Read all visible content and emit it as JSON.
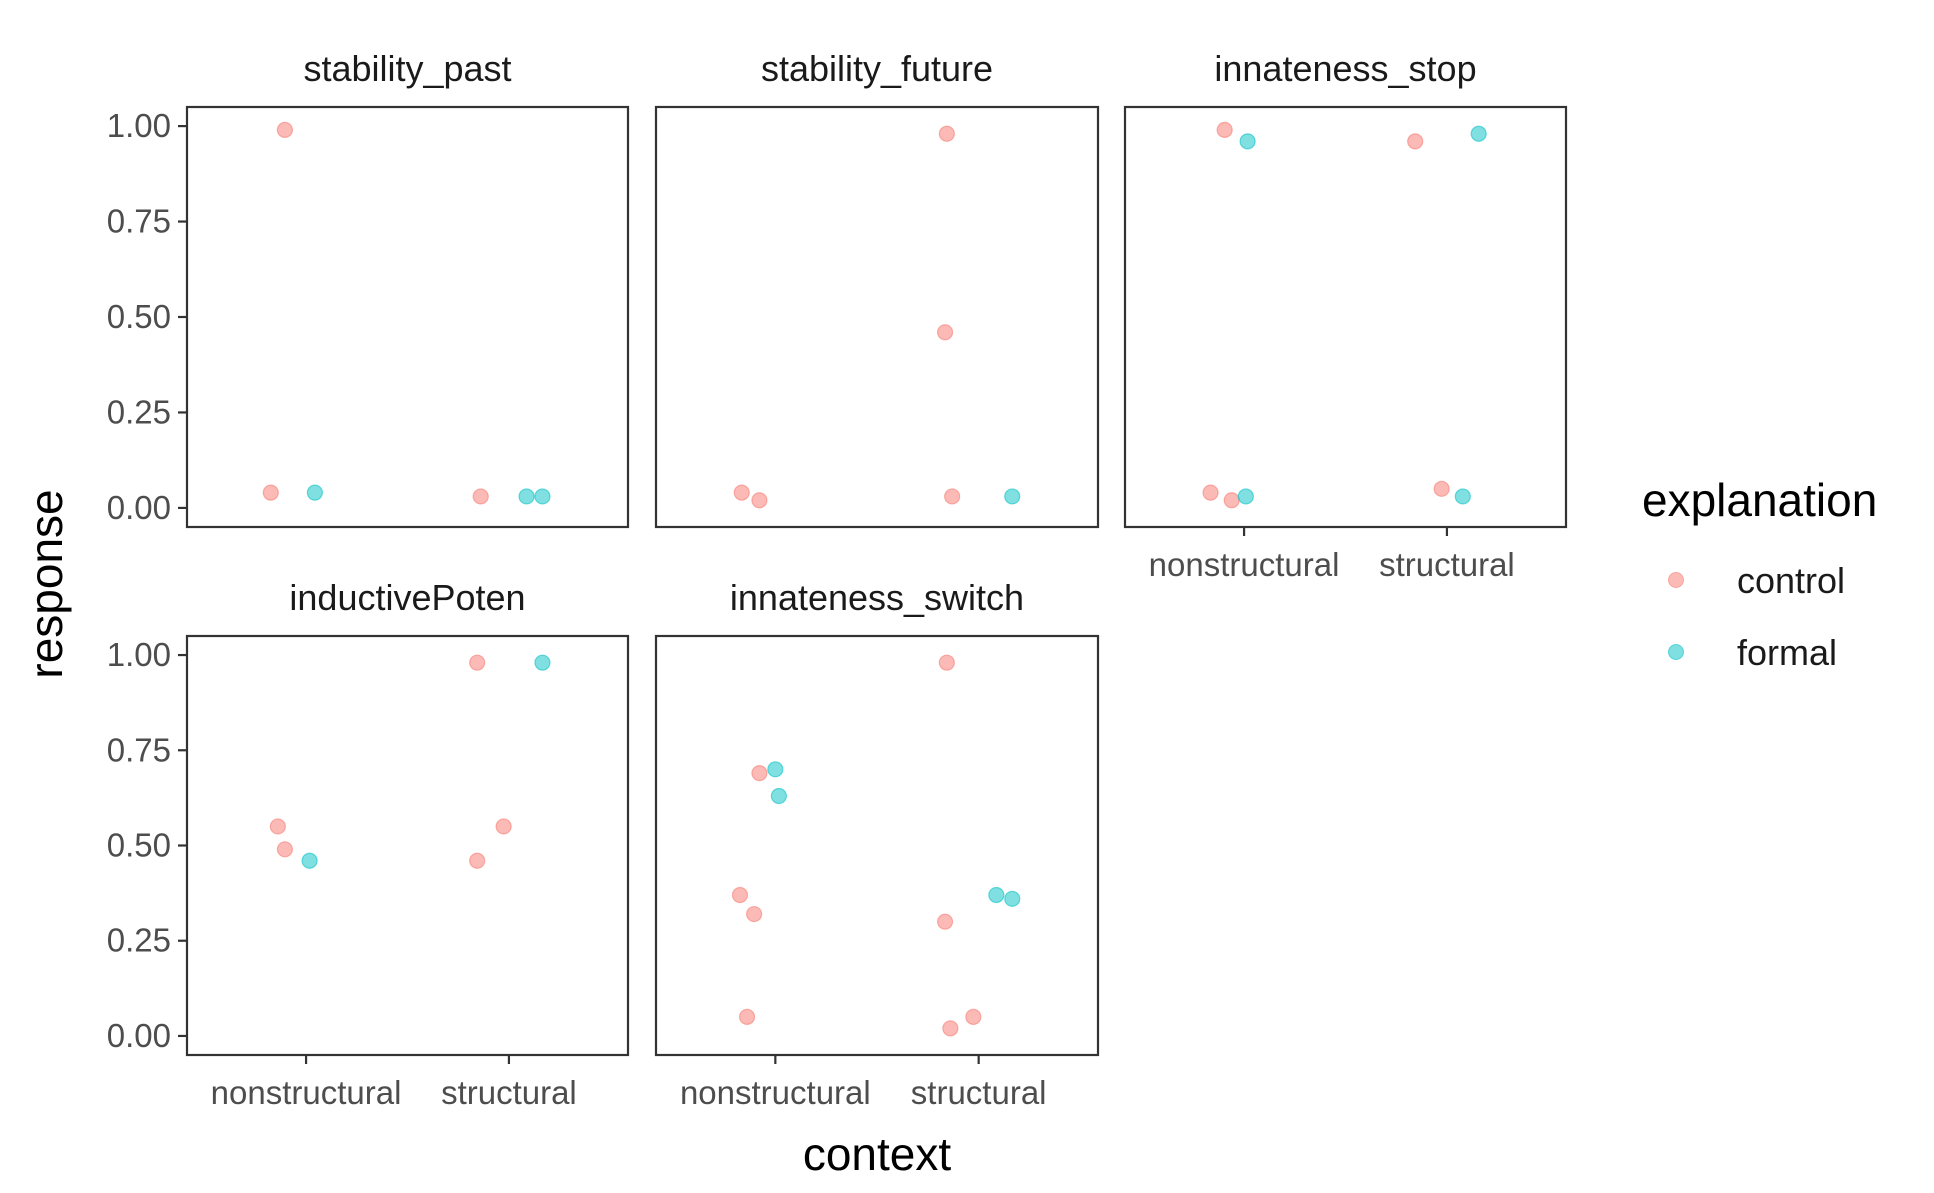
{
  "chart_data": {
    "type": "scatter",
    "xlabel": "context",
    "ylabel": "response",
    "categories": [
      "nonstructural",
      "structural"
    ],
    "yticks": [
      "0.00",
      "0.25",
      "0.50",
      "0.75",
      "1.00"
    ],
    "ylim": [
      -0.05,
      1.05
    ],
    "legend": {
      "title": "explanation",
      "placement": "right",
      "entries": [
        {
          "name": "control",
          "color": "#F8766D"
        },
        {
          "name": "formal",
          "color": "#00BFC4"
        }
      ]
    },
    "panels": [
      {
        "title": "stability_past",
        "points": [
          {
            "x": "nonstructural",
            "jitter": -0.2,
            "y": 0.04,
            "series": "control"
          },
          {
            "x": "nonstructural",
            "jitter": -0.12,
            "y": 0.99,
            "series": "control"
          },
          {
            "x": "nonstructural",
            "jitter": 0.05,
            "y": 0.04,
            "series": "formal"
          },
          {
            "x": "structural",
            "jitter": -0.16,
            "y": 0.03,
            "series": "control"
          },
          {
            "x": "structural",
            "jitter": 0.1,
            "y": 0.03,
            "series": "formal"
          },
          {
            "x": "structural",
            "jitter": 0.19,
            "y": 0.03,
            "series": "formal"
          }
        ]
      },
      {
        "title": "stability_future",
        "points": [
          {
            "x": "nonstructural",
            "jitter": -0.19,
            "y": 0.04,
            "series": "control"
          },
          {
            "x": "nonstructural",
            "jitter": -0.09,
            "y": 0.02,
            "series": "control"
          },
          {
            "x": "structural",
            "jitter": -0.18,
            "y": 0.98,
            "series": "control"
          },
          {
            "x": "structural",
            "jitter": -0.19,
            "y": 0.46,
            "series": "control"
          },
          {
            "x": "structural",
            "jitter": -0.15,
            "y": 0.03,
            "series": "control"
          },
          {
            "x": "structural",
            "jitter": 0.19,
            "y": 0.03,
            "series": "formal"
          }
        ]
      },
      {
        "title": "innateness_stop",
        "points": [
          {
            "x": "nonstructural",
            "jitter": -0.19,
            "y": 0.04,
            "series": "control"
          },
          {
            "x": "nonstructural",
            "jitter": -0.11,
            "y": 0.99,
            "series": "control"
          },
          {
            "x": "nonstructural",
            "jitter": -0.07,
            "y": 0.02,
            "series": "control"
          },
          {
            "x": "nonstructural",
            "jitter": 0.02,
            "y": 0.96,
            "series": "formal"
          },
          {
            "x": "nonstructural",
            "jitter": 0.01,
            "y": 0.03,
            "series": "formal"
          },
          {
            "x": "structural",
            "jitter": -0.18,
            "y": 0.96,
            "series": "control"
          },
          {
            "x": "structural",
            "jitter": -0.03,
            "y": 0.05,
            "series": "control"
          },
          {
            "x": "structural",
            "jitter": 0.09,
            "y": 0.03,
            "series": "formal"
          },
          {
            "x": "structural",
            "jitter": 0.18,
            "y": 0.98,
            "series": "formal"
          }
        ]
      },
      {
        "title": "inductivePoten",
        "points": [
          {
            "x": "nonstructural",
            "jitter": -0.16,
            "y": 0.55,
            "series": "control"
          },
          {
            "x": "nonstructural",
            "jitter": -0.12,
            "y": 0.49,
            "series": "control"
          },
          {
            "x": "nonstructural",
            "jitter": 0.02,
            "y": 0.46,
            "series": "formal"
          },
          {
            "x": "structural",
            "jitter": -0.18,
            "y": 0.98,
            "series": "control"
          },
          {
            "x": "structural",
            "jitter": -0.18,
            "y": 0.46,
            "series": "control"
          },
          {
            "x": "structural",
            "jitter": -0.03,
            "y": 0.55,
            "series": "control"
          },
          {
            "x": "structural",
            "jitter": 0.19,
            "y": 0.98,
            "series": "formal"
          }
        ]
      },
      {
        "title": "innateness_switch",
        "points": [
          {
            "x": "nonstructural",
            "jitter": -0.2,
            "y": 0.37,
            "series": "control"
          },
          {
            "x": "nonstructural",
            "jitter": -0.12,
            "y": 0.32,
            "series": "control"
          },
          {
            "x": "nonstructural",
            "jitter": -0.16,
            "y": 0.05,
            "series": "control"
          },
          {
            "x": "nonstructural",
            "jitter": -0.09,
            "y": 0.69,
            "series": "control"
          },
          {
            "x": "nonstructural",
            "jitter": 0.0,
            "y": 0.7,
            "series": "formal"
          },
          {
            "x": "nonstructural",
            "jitter": 0.02,
            "y": 0.63,
            "series": "formal"
          },
          {
            "x": "structural",
            "jitter": -0.18,
            "y": 0.98,
            "series": "control"
          },
          {
            "x": "structural",
            "jitter": -0.19,
            "y": 0.3,
            "series": "control"
          },
          {
            "x": "structural",
            "jitter": -0.16,
            "y": 0.02,
            "series": "control"
          },
          {
            "x": "structural",
            "jitter": -0.03,
            "y": 0.05,
            "series": "control"
          },
          {
            "x": "structural",
            "jitter": 0.1,
            "y": 0.37,
            "series": "formal"
          },
          {
            "x": "structural",
            "jitter": 0.19,
            "y": 0.36,
            "series": "formal"
          }
        ]
      }
    ]
  }
}
